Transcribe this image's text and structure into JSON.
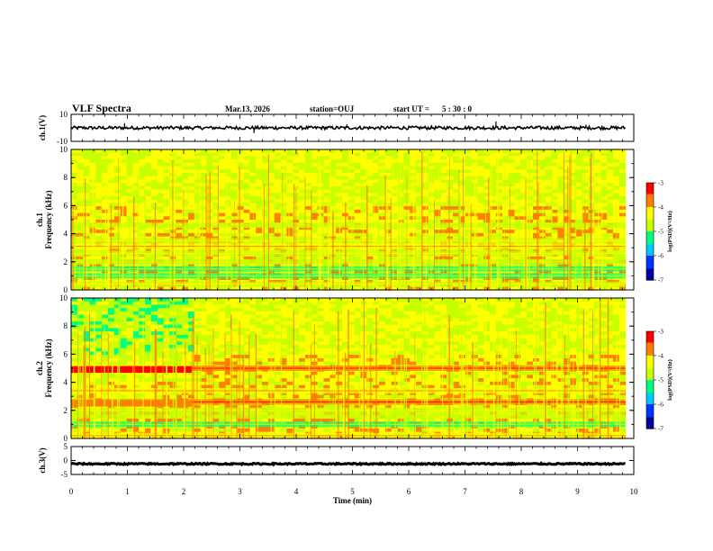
{
  "header": {
    "title": "VLF Spectra",
    "date": "Mar.13, 2026",
    "station": "station=OUJ",
    "start_label": "start UT =",
    "start_time": "5 : 30 : 0"
  },
  "colors": {
    "colormap": [
      "#0000a0",
      "#0033ff",
      "#00c8ff",
      "#00ff80",
      "#c8ff00",
      "#ffff00",
      "#ff8000",
      "#ff0000",
      "#ffffff"
    ],
    "trace": "#000000"
  },
  "chart_data": [
    {
      "type": "line",
      "name": "ch1-waveform",
      "ylabel": "ch.1(V)",
      "ylim": [
        -10,
        10
      ],
      "yticks": [
        "10",
        "-10"
      ],
      "baseline_value": 0,
      "amplitude": 1.2,
      "spikes": [
        {
          "t": 0.95,
          "v": 3.5
        },
        {
          "t": 3.25,
          "v": -3.8
        },
        {
          "t": 4.9,
          "v": 2.6
        },
        {
          "t": 7.55,
          "v": 4.8
        },
        {
          "t": 9.15,
          "v": 2.4
        }
      ]
    },
    {
      "type": "heatmap",
      "name": "ch1-spectrogram",
      "ylabel_top": "ch.1",
      "ylabel": "Frequency (kHz)",
      "ylim": [
        0,
        10
      ],
      "yticks": [
        "0",
        "2",
        "4",
        "6",
        "8",
        "10"
      ],
      "colorbar": {
        "label": "log(PSD)(V²/Hz)",
        "range": [
          -7,
          -3
        ],
        "ticks": [
          "-3",
          "-4",
          "-5",
          "-6",
          "-7"
        ]
      },
      "bands": [
        {
          "f": 0.4,
          "level": 0.55
        },
        {
          "f": 1.0,
          "level": 0.45
        },
        {
          "f": 1.5,
          "level": 0.4
        },
        {
          "f": 2.0,
          "level": 0.5
        },
        {
          "f": 2.6,
          "level": 0.6
        },
        {
          "f": 3.1,
          "level": 0.65
        },
        {
          "f": 3.5,
          "level": 0.6
        },
        {
          "f": 4.6,
          "level": 0.5
        }
      ]
    },
    {
      "type": "heatmap",
      "name": "ch2-spectrogram",
      "ylabel_top": "ch.2",
      "ylabel": "Frequency (kHz)",
      "ylim": [
        0,
        10
      ],
      "yticks": [
        "0",
        "2",
        "4",
        "6",
        "8",
        "10"
      ],
      "colorbar": {
        "label": "log(PSD)(V²/Hz)",
        "range": [
          -7,
          -3
        ],
        "ticks": [
          "-3",
          "-4",
          "-5",
          "-6",
          "-7"
        ]
      },
      "bands": [
        {
          "f": 0.2,
          "level": 0.7
        },
        {
          "f": 1.0,
          "level": 0.45
        },
        {
          "f": 1.6,
          "level": 0.5
        },
        {
          "f": 2.0,
          "level": 0.55
        },
        {
          "f": 2.6,
          "level": 0.8
        },
        {
          "f": 3.4,
          "level": 0.7
        },
        {
          "f": 5.0,
          "level": 0.85
        }
      ],
      "hot_segment_end_min": 2.15
    },
    {
      "type": "line",
      "name": "ch3-waveform",
      "ylabel": "ch.3(V)",
      "ylim": [
        -5,
        5
      ],
      "yticks": [
        "5",
        "0",
        "-5"
      ],
      "baseline_value": -1.2,
      "amplitude": 0.25
    }
  ],
  "xaxis": {
    "label": "Time (min)",
    "range": [
      0,
      10
    ],
    "data_end": 9.85,
    "ticks": [
      "0",
      "1",
      "2",
      "3",
      "4",
      "5",
      "6",
      "7",
      "8",
      "9",
      "10"
    ]
  }
}
